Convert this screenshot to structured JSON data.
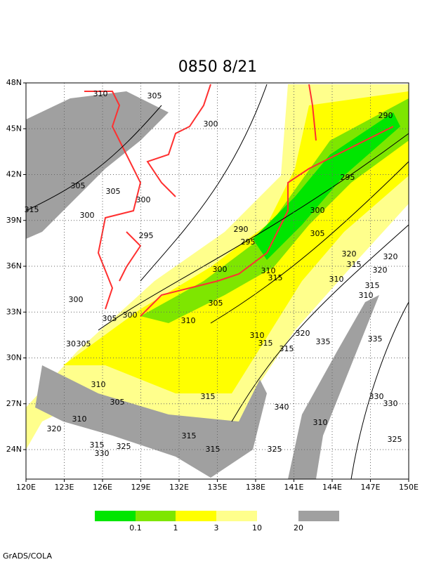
{
  "title": "0850 8/21",
  "map": {
    "lon_labels": [
      "120E",
      "123E",
      "126E",
      "129E",
      "132E",
      "135E",
      "138E",
      "141E",
      "144E",
      "147E",
      "150E"
    ],
    "lat_labels": [
      "24N",
      "27N",
      "30N",
      "33N",
      "36N",
      "39N",
      "42N",
      "45N",
      "48N"
    ]
  },
  "contour_labels": [
    "310",
    "305",
    "300",
    "290",
    "295",
    "305",
    "305",
    "300",
    "315",
    "300",
    "300",
    "290",
    "305",
    "295",
    "295",
    "320",
    "320",
    "315",
    "320",
    "300",
    "310",
    "315",
    "310",
    "315",
    "310",
    "300",
    "305",
    "305",
    "300",
    "310",
    "310",
    "320",
    "315",
    "315",
    "335",
    "335",
    "30",
    "305",
    "310",
    "315",
    "305",
    "340",
    "330",
    "330",
    "310",
    "310",
    "320",
    "315",
    "325",
    "315",
    "325",
    "315",
    "325",
    "330"
  ],
  "legend": {
    "labels": [
      "0.1",
      "1",
      "3",
      "10",
      "20"
    ],
    "colors": [
      "#00e600",
      "#7ee600",
      "#ffff00",
      "#ffff8c",
      "#a0a0a0"
    ]
  },
  "footer": "GrADS/COLA"
}
